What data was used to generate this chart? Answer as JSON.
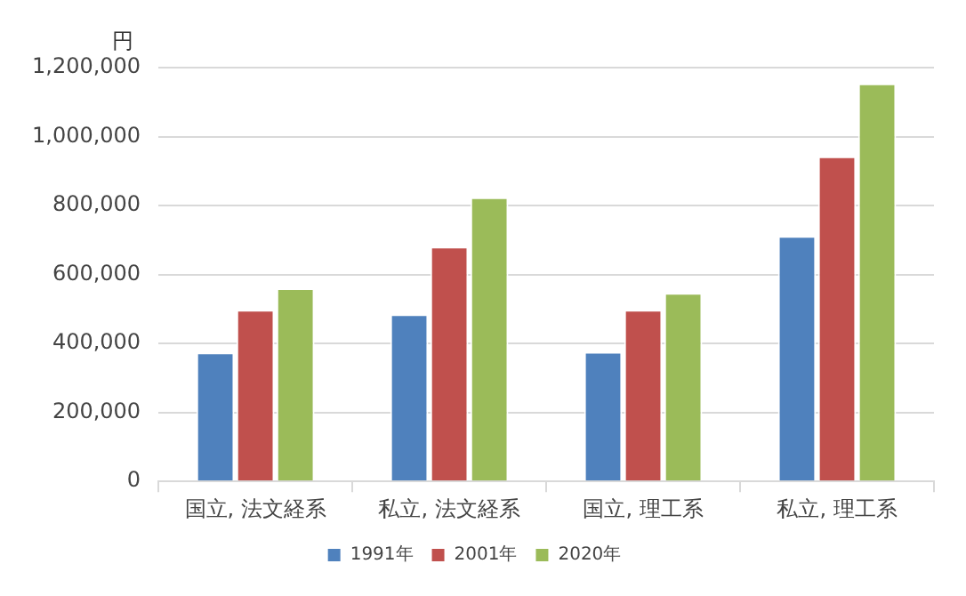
{
  "chart_data": {
    "type": "bar",
    "ylabel": "円",
    "categories": [
      "国立, 法文経系",
      "私立, 法文経系",
      "国立, 理工系",
      "私立, 理工系"
    ],
    "series": [
      {
        "name": "1991年",
        "color": "#4f81bd",
        "values": [
          374000,
          485000,
          376000,
          712000
        ]
      },
      {
        "name": "2001年",
        "color": "#c0504d",
        "values": [
          498000,
          681000,
          498000,
          943000
        ]
      },
      {
        "name": "2020年",
        "color": "#9bbb59",
        "values": [
          560000,
          824000,
          547000,
          1154000
        ]
      }
    ],
    "ylim": [
      0,
      1200000
    ],
    "yticks": [
      {
        "value": 0,
        "label": "0"
      },
      {
        "value": 200000,
        "label": "200,000"
      },
      {
        "value": 400000,
        "label": "400,000"
      },
      {
        "value": 600000,
        "label": "600,000"
      },
      {
        "value": 800000,
        "label": "800,000"
      },
      {
        "value": 1000000,
        "label": "1,000,000"
      },
      {
        "value": 1200000,
        "label": "1,200,000"
      }
    ],
    "grid": "y",
    "legend": "bottom"
  }
}
